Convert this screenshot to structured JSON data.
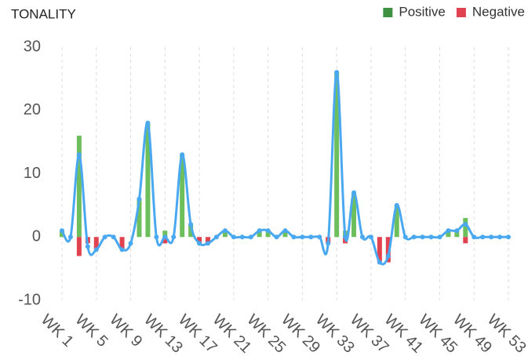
{
  "chart_data": {
    "type": "bar",
    "title": "TONALITY",
    "categories": [
      "WK 1",
      null,
      null,
      null,
      "WK 5",
      null,
      null,
      null,
      "WK 9",
      null,
      null,
      null,
      "WK 13",
      null,
      null,
      null,
      "WK 17",
      null,
      null,
      null,
      "WK 21",
      null,
      null,
      null,
      "WK 25",
      null,
      null,
      null,
      "WK 29",
      null,
      null,
      null,
      "WK 33",
      null,
      null,
      null,
      "WK 37",
      null,
      null,
      null,
      "WK 41",
      null,
      null,
      null,
      "WK 45",
      null,
      null,
      null,
      "WK 49",
      null,
      null,
      null,
      "WK 53"
    ],
    "series": [
      {
        "name": "Positive",
        "color": "#6dbf5e",
        "legend_color": "#3f9142",
        "values": [
          1,
          0,
          16,
          0,
          0,
          0,
          0,
          0,
          0,
          6,
          18,
          0,
          1,
          0,
          13,
          2,
          0,
          0,
          0,
          1,
          0,
          0,
          0,
          1,
          1,
          0,
          1,
          0,
          0,
          0,
          0,
          0,
          26,
          1,
          7,
          0,
          0,
          0,
          0,
          5,
          0,
          0,
          0,
          0,
          0,
          1,
          1,
          3,
          0,
          0,
          0,
          0,
          0
        ]
      },
      {
        "name": "Negative",
        "color": "#e0434f",
        "legend_color": "#e0434f",
        "values": [
          0,
          0,
          -3,
          -1,
          -2,
          0,
          0,
          -2,
          0,
          0,
          0,
          0,
          -1,
          0,
          0,
          0,
          -1,
          -1,
          0,
          0,
          0,
          0,
          0,
          0,
          0,
          0,
          0,
          0,
          0,
          0,
          0,
          -1,
          0,
          -1,
          0,
          0,
          0,
          -4,
          -4,
          0,
          0,
          0,
          0,
          0,
          0,
          0,
          0,
          -1,
          0,
          0,
          0,
          0,
          0
        ]
      }
    ],
    "line": {
      "color": "#4aa8f0",
      "values": [
        1,
        0,
        13,
        -1.5,
        -2,
        0,
        0,
        -2,
        -1,
        6,
        18,
        0,
        0,
        0,
        13,
        2,
        -1,
        -1,
        0,
        1,
        0,
        0,
        0,
        1,
        1,
        0,
        1,
        0,
        0,
        0,
        0,
        -1,
        26,
        0,
        7,
        0,
        0,
        -4,
        -3,
        5,
        0,
        0,
        0,
        0,
        0,
        1,
        1,
        2,
        0,
        0,
        0,
        0,
        0
      ]
    },
    "ylim": [
      -10,
      30
    ],
    "yticks": [
      -10,
      0,
      10,
      20,
      30
    ],
    "grid": true,
    "legend": "top-right"
  }
}
